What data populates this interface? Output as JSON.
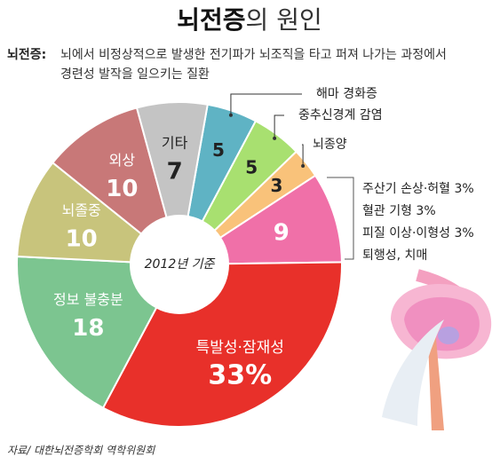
{
  "chart_data": {
    "type": "pie",
    "title_main": "뇌전증",
    "title_rest": "의 원인",
    "definition_label": "뇌전증:",
    "definition_lines": [
      "뇌에서 비정상적으로 발생한 전기파가 뇌조직을 타고 퍼져 나가는 과정에서",
      "경련성 발작을 일으키는 질환"
    ],
    "center_label": "2012년 기준",
    "categories": [
      "해마 경화증",
      "중추신경계 감염",
      "뇌종양",
      null,
      "특발성·잠재성",
      "정보  불충분",
      "뇌졸중",
      "외상",
      "기타"
    ],
    "values": [
      5,
      5,
      3,
      9,
      33,
      18,
      10,
      10,
      7
    ],
    "value_labels": [
      "5",
      "5",
      "3",
      "9",
      "33%",
      "18",
      "10",
      "10",
      "7"
    ],
    "colors": [
      "#5fb3c4",
      "#a8e070",
      "#f9c27a",
      "#f070a8",
      "#e8302a",
      "#7cc590",
      "#c8c47c",
      "#c87878",
      "#c4c4c4"
    ],
    "other_causes": [
      "주산기 손상·허혈 3%",
      "혈관 기형 3%",
      "피질 이상·이형성 3%",
      "퇴행성, 치매"
    ],
    "source": "자료/ 대한뇌전증학회 역학위원회"
  }
}
